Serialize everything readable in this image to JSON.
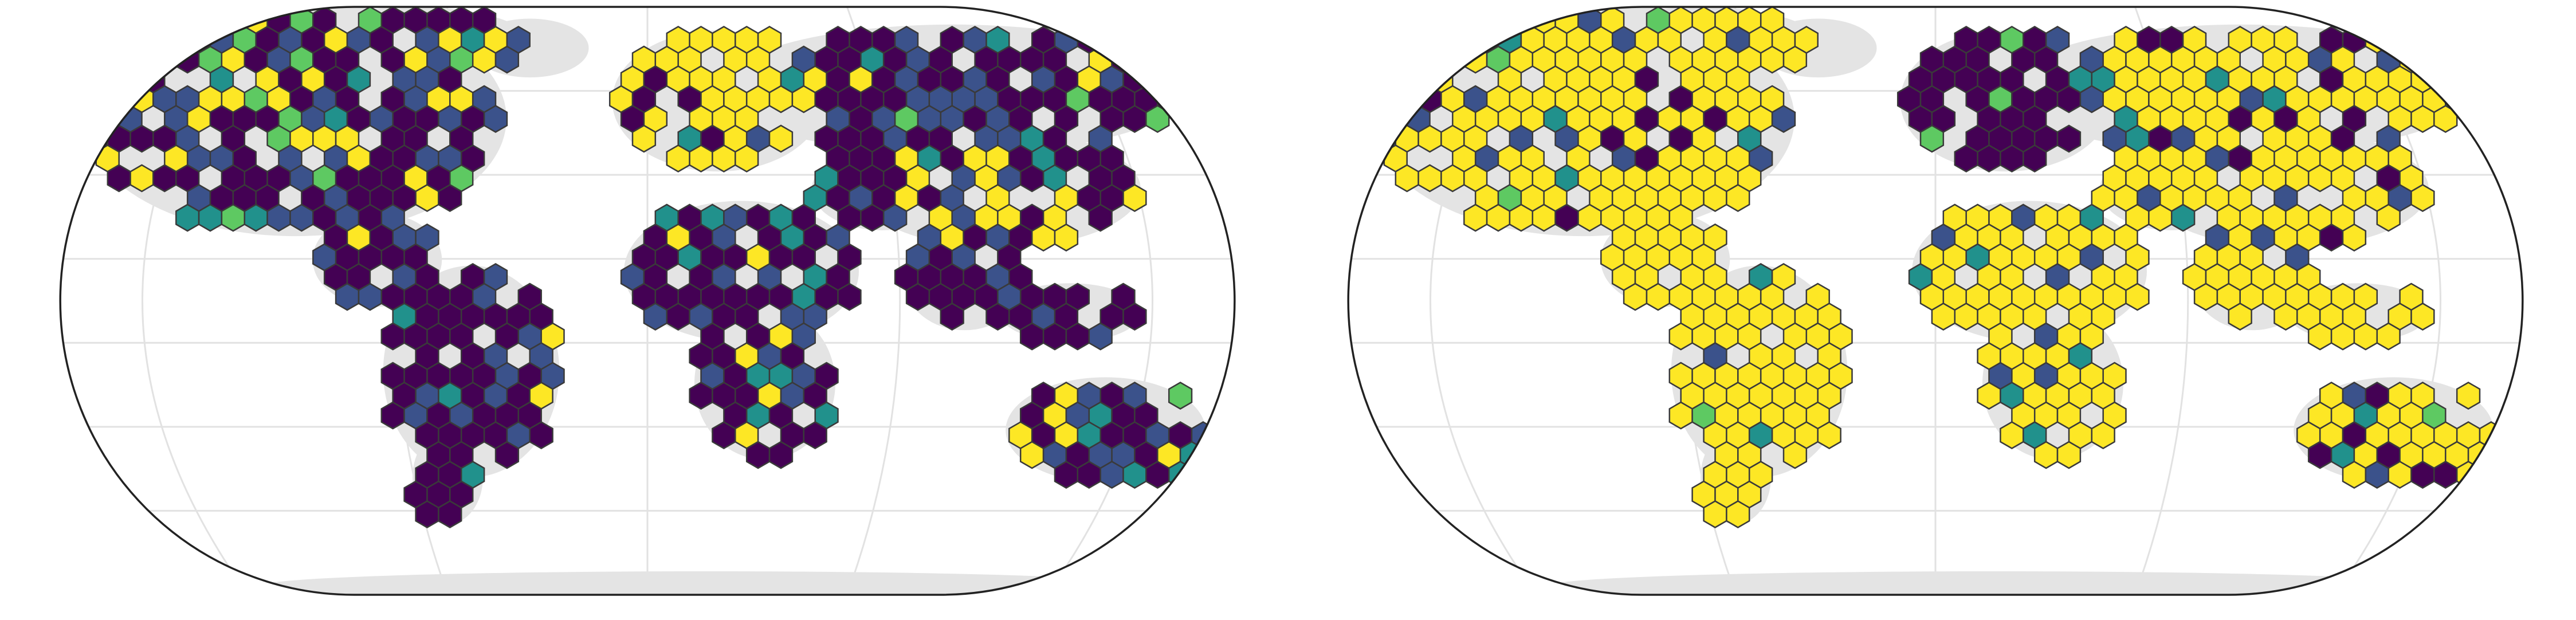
{
  "figure": {
    "projection": "Eckert IV",
    "panel_count": 2
  },
  "colors": {
    "background": "#ffffff",
    "frame": "#222222",
    "graticule": "#e2e2e2",
    "land": "#e4e4e4",
    "hex_outline": "#3a3a3a",
    "scale": [
      "#440154",
      "#3b528b",
      "#21918c",
      "#5ec962",
      "#fde725"
    ]
  },
  "maps": [
    {
      "id": "left",
      "dominant_color": "#440154",
      "regions": [
        {
          "name": "north-america",
          "mix": [
            0.45,
            0.3,
            0.07,
            0.05,
            0.13
          ]
        },
        {
          "name": "central-america",
          "mix": [
            0.7,
            0.2,
            0.05,
            0.02,
            0.03
          ]
        },
        {
          "name": "south-america",
          "mix": [
            0.7,
            0.22,
            0.03,
            0.0,
            0.05
          ]
        },
        {
          "name": "europe",
          "mix": [
            0.05,
            0.03,
            0.02,
            0.0,
            0.9
          ]
        },
        {
          "name": "russia",
          "mix": [
            0.55,
            0.25,
            0.08,
            0.04,
            0.08
          ]
        },
        {
          "name": "africa",
          "mix": [
            0.65,
            0.15,
            0.1,
            0.02,
            0.08
          ]
        },
        {
          "name": "asia",
          "mix": [
            0.4,
            0.25,
            0.05,
            0.0,
            0.3
          ]
        },
        {
          "name": "south-asia",
          "mix": [
            0.75,
            0.2,
            0.0,
            0.0,
            0.05
          ]
        },
        {
          "name": "australia",
          "mix": [
            0.5,
            0.3,
            0.08,
            0.04,
            0.08
          ]
        },
        {
          "name": "new-zealand",
          "mix": [
            0.35,
            0.2,
            0.15,
            0.05,
            0.25
          ]
        }
      ]
    },
    {
      "id": "right",
      "dominant_color": "#fde725",
      "regions": [
        {
          "name": "north-america",
          "mix": [
            0.05,
            0.08,
            0.04,
            0.05,
            0.78
          ]
        },
        {
          "name": "central-america",
          "mix": [
            0.0,
            0.02,
            0.0,
            0.0,
            0.98
          ]
        },
        {
          "name": "south-america",
          "mix": [
            0.0,
            0.02,
            0.04,
            0.04,
            0.9
          ]
        },
        {
          "name": "europe",
          "mix": [
            0.75,
            0.12,
            0.05,
            0.03,
            0.05
          ]
        },
        {
          "name": "russia",
          "mix": [
            0.08,
            0.1,
            0.04,
            0.02,
            0.76
          ]
        },
        {
          "name": "africa",
          "mix": [
            0.0,
            0.05,
            0.08,
            0.02,
            0.85
          ]
        },
        {
          "name": "asia",
          "mix": [
            0.04,
            0.08,
            0.04,
            0.02,
            0.82
          ]
        },
        {
          "name": "south-asia",
          "mix": [
            0.0,
            0.03,
            0.0,
            0.0,
            0.97
          ]
        },
        {
          "name": "australia",
          "mix": [
            0.1,
            0.1,
            0.08,
            0.04,
            0.68
          ]
        },
        {
          "name": "new-zealand",
          "mix": [
            0.2,
            0.3,
            0.2,
            0.0,
            0.3
          ]
        }
      ]
    }
  ]
}
